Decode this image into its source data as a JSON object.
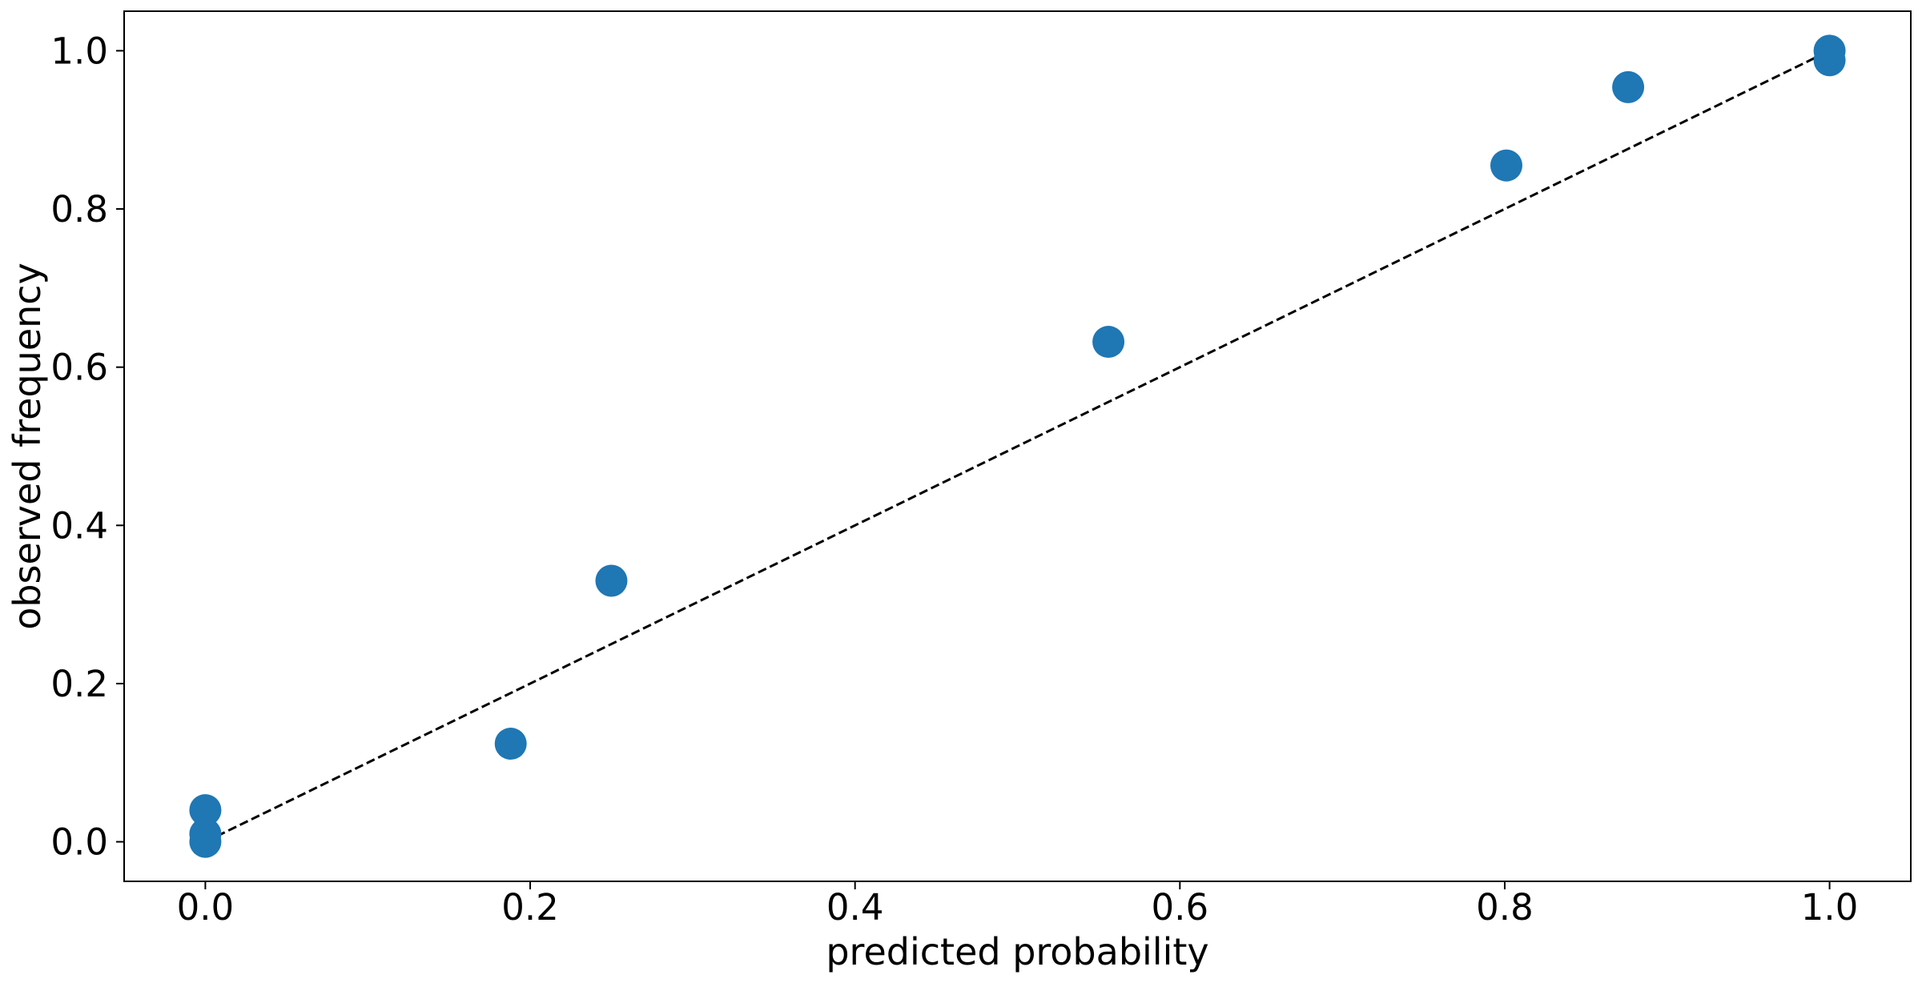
{
  "chart_data": {
    "type": "scatter",
    "title": "",
    "xlabel": "predicted probability",
    "ylabel": "observed frequency",
    "xlim": [
      -0.05,
      1.05
    ],
    "ylim": [
      -0.05,
      1.05
    ],
    "xticks": [
      0.0,
      0.2,
      0.4,
      0.6,
      0.8,
      1.0
    ],
    "xtick_labels": [
      "0.0",
      "0.2",
      "0.4",
      "0.6",
      "0.8",
      "1.0"
    ],
    "yticks": [
      0.0,
      0.2,
      0.4,
      0.6,
      0.8,
      1.0
    ],
    "ytick_labels": [
      "0.0",
      "0.2",
      "0.4",
      "0.6",
      "0.8",
      "1.0"
    ],
    "grid": false,
    "legend": "none",
    "series": [
      {
        "type": "scatter",
        "color": "#1f77b4",
        "points": [
          {
            "x": 0.0,
            "y": 0.0
          },
          {
            "x": 0.0,
            "y": 0.01
          },
          {
            "x": 0.0,
            "y": 0.04
          },
          {
            "x": 0.188,
            "y": 0.124
          },
          {
            "x": 0.25,
            "y": 0.33
          },
          {
            "x": 0.556,
            "y": 0.632
          },
          {
            "x": 0.801,
            "y": 0.855
          },
          {
            "x": 0.876,
            "y": 0.954
          },
          {
            "x": 1.0,
            "y": 0.988
          },
          {
            "x": 1.0,
            "y": 1.0
          }
        ]
      },
      {
        "type": "line",
        "style": "dashed",
        "color": "#000000",
        "points": [
          {
            "x": 0.0,
            "y": 0.0
          },
          {
            "x": 1.0,
            "y": 1.0
          }
        ]
      }
    ]
  }
}
